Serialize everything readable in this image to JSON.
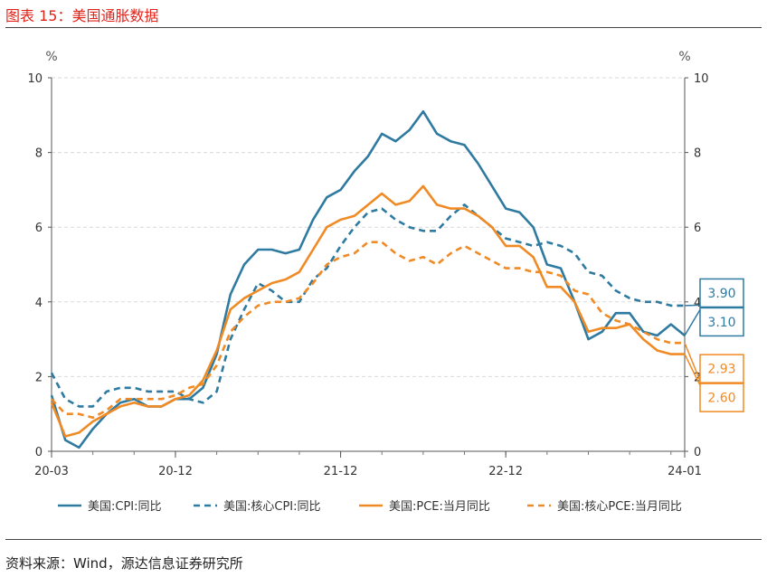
{
  "figure": {
    "title": "图表 15：美国通胀数据",
    "source": "资料来源：Wind，源达信息证券研究所"
  },
  "chart_data": {
    "type": "line",
    "title": "",
    "y_unit_left": "%",
    "y_unit_right": "%",
    "ylim": [
      0,
      10
    ],
    "yticks": [
      "0",
      "2",
      "4",
      "6",
      "8",
      "10"
    ],
    "x_start": "2020-03",
    "x_end": "2024-01",
    "x_tick_labels": [
      {
        "label": "20-03",
        "date": "2020-03"
      },
      {
        "label": "20-12",
        "date": "2020-12"
      },
      {
        "label": "21-12",
        "date": "2021-12"
      },
      {
        "label": "22-12",
        "date": "2022-12"
      },
      {
        "label": "24-01",
        "date": "2024-01"
      }
    ],
    "grid": true,
    "legend_position": "bottom",
    "series": [
      {
        "name": "美国:CPI:同比",
        "color": "#2e7aa0",
        "dash": false,
        "values": [
          1.5,
          0.3,
          0.1,
          0.6,
          1.0,
          1.3,
          1.4,
          1.2,
          1.2,
          1.4,
          1.4,
          1.7,
          2.6,
          4.2,
          5.0,
          5.4,
          5.4,
          5.3,
          5.4,
          6.2,
          6.8,
          7.0,
          7.5,
          7.9,
          8.5,
          8.3,
          8.6,
          9.1,
          8.5,
          8.3,
          8.2,
          7.7,
          7.1,
          6.5,
          6.4,
          6.0,
          5.0,
          4.9,
          4.0,
          3.0,
          3.2,
          3.7,
          3.7,
          3.2,
          3.1,
          3.4,
          3.1
        ],
        "last": "3.10"
      },
      {
        "name": "美国:核心CPI:同比",
        "color": "#2e7aa0",
        "dash": true,
        "values": [
          2.1,
          1.4,
          1.2,
          1.2,
          1.6,
          1.7,
          1.7,
          1.6,
          1.6,
          1.6,
          1.4,
          1.3,
          1.6,
          3.0,
          3.8,
          4.5,
          4.3,
          4.0,
          4.0,
          4.6,
          4.9,
          5.5,
          6.0,
          6.4,
          6.5,
          6.2,
          6.0,
          5.9,
          5.9,
          6.3,
          6.6,
          6.3,
          6.0,
          5.7,
          5.6,
          5.5,
          5.6,
          5.5,
          5.3,
          4.8,
          4.7,
          4.3,
          4.1,
          4.0,
          4.0,
          3.9,
          3.9
        ],
        "last": "3.90"
      },
      {
        "name": "美国:PCE:当月同比",
        "color": "#f08a24",
        "dash": false,
        "values": [
          1.3,
          0.4,
          0.5,
          0.8,
          1.0,
          1.2,
          1.3,
          1.2,
          1.2,
          1.4,
          1.5,
          1.9,
          2.7,
          3.8,
          4.1,
          4.3,
          4.5,
          4.6,
          4.8,
          5.4,
          6.0,
          6.2,
          6.3,
          6.6,
          6.9,
          6.6,
          6.7,
          7.1,
          6.6,
          6.5,
          6.5,
          6.3,
          6.0,
          5.5,
          5.5,
          5.2,
          4.4,
          4.4,
          4.0,
          3.2,
          3.3,
          3.3,
          3.4,
          3.0,
          2.7,
          2.6,
          2.6
        ],
        "last": "2.60"
      },
      {
        "name": "美国:核心PCE:当月同比",
        "color": "#f08a24",
        "dash": true,
        "values": [
          1.4,
          1.0,
          1.0,
          0.9,
          1.1,
          1.4,
          1.4,
          1.4,
          1.4,
          1.5,
          1.7,
          1.8,
          2.3,
          3.2,
          3.6,
          3.9,
          4.0,
          4.0,
          4.1,
          4.5,
          5.0,
          5.2,
          5.3,
          5.6,
          5.6,
          5.3,
          5.1,
          5.2,
          5.0,
          5.3,
          5.5,
          5.3,
          5.1,
          4.9,
          4.9,
          4.8,
          4.8,
          4.7,
          4.3,
          4.2,
          3.7,
          3.5,
          3.4,
          3.2,
          3.0,
          2.9,
          2.9
        ],
        "last": "2.93"
      }
    ]
  }
}
